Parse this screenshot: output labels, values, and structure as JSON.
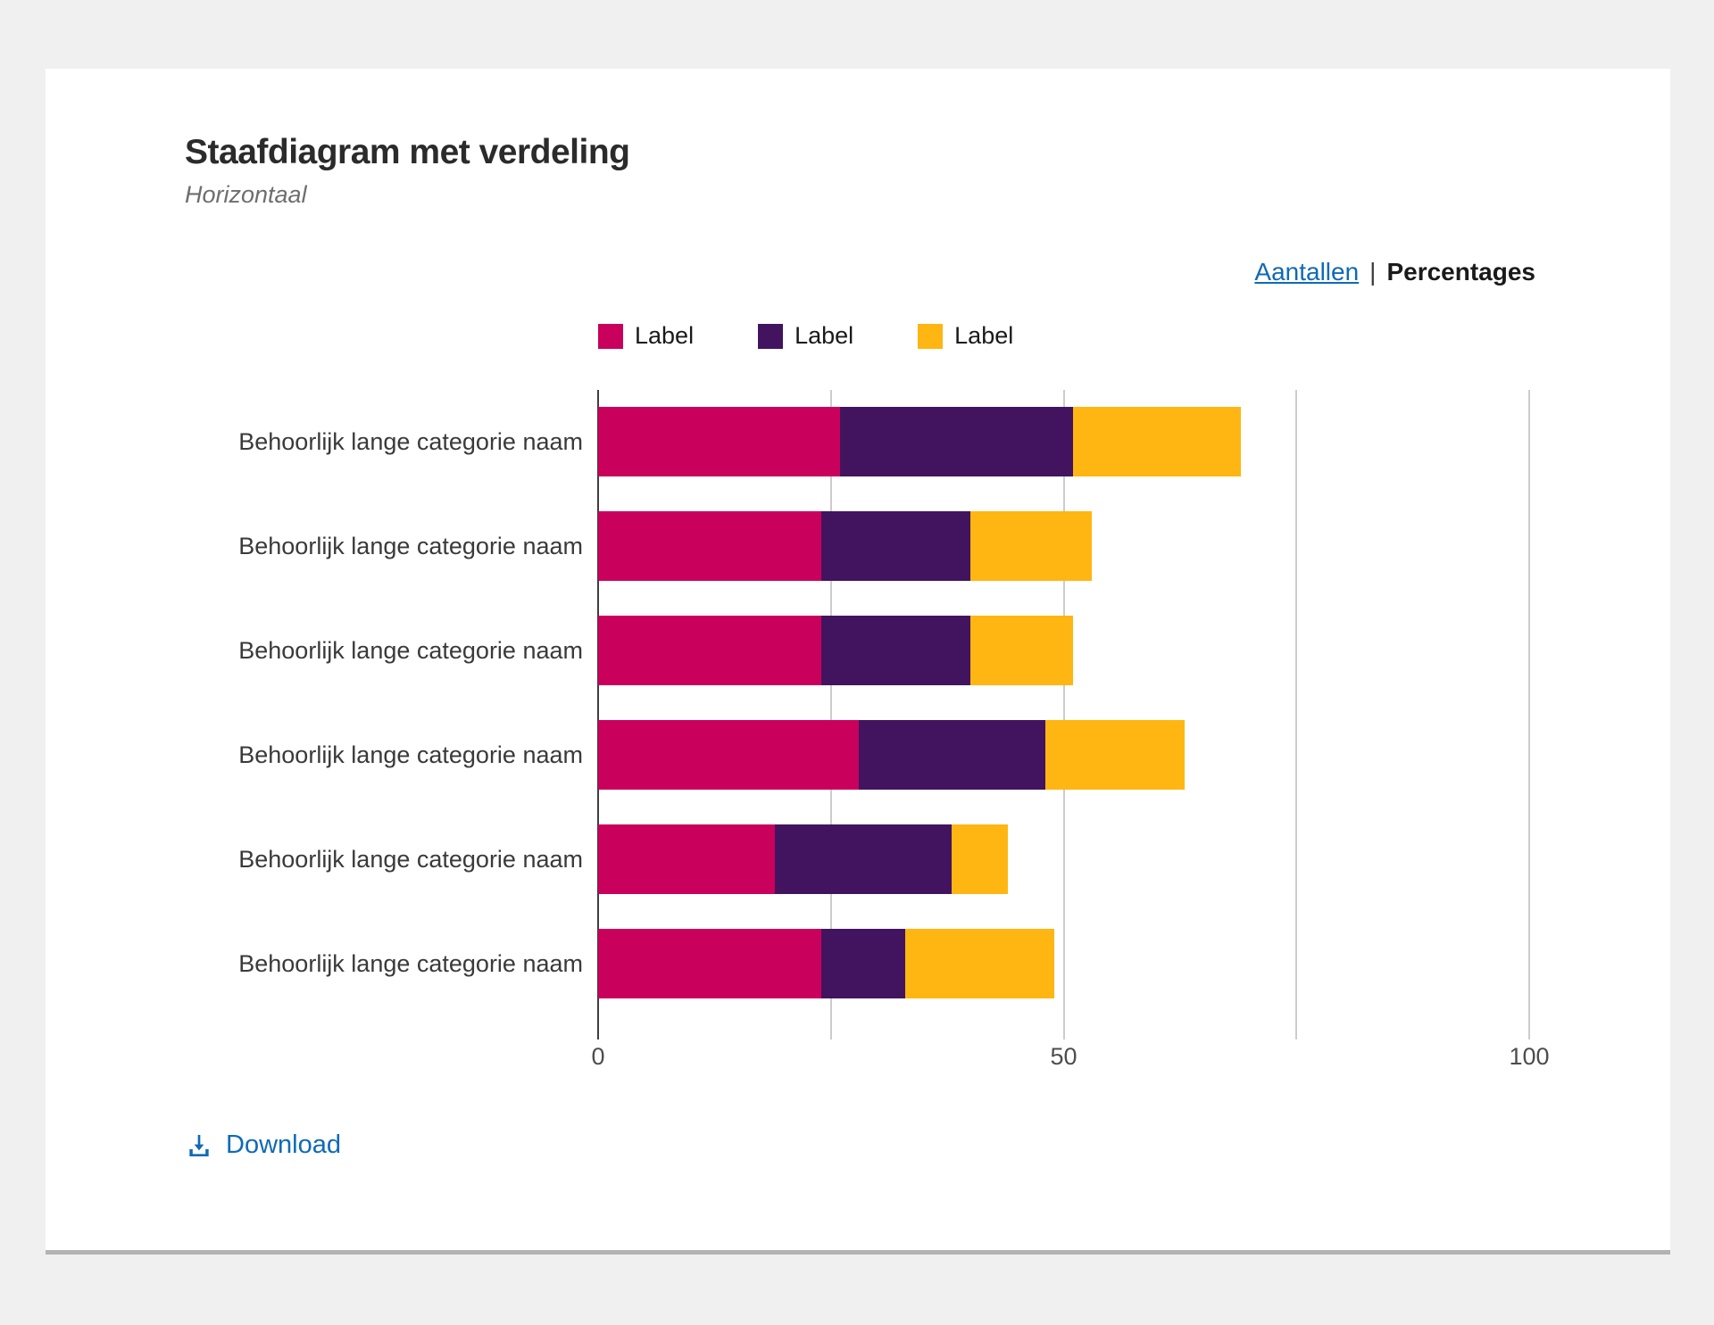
{
  "header": {
    "title": "Staafdiagram met verdeling",
    "subtitle": "Horizontaal"
  },
  "view_toggle": {
    "separator": "|",
    "options": [
      {
        "label": "Aantallen",
        "active": false
      },
      {
        "label": "Percentages",
        "active": true
      }
    ]
  },
  "legend": {
    "items": [
      {
        "label": "Label",
        "color": "#CA005D"
      },
      {
        "label": "Label",
        "color": "#42145F"
      },
      {
        "label": "Label",
        "color": "#FFB612"
      }
    ]
  },
  "chart_data": {
    "type": "bar",
    "orientation": "horizontal",
    "stacked": true,
    "title": "Staafdiagram met verdeling",
    "subtitle": "Horizontaal",
    "unit": "percent",
    "categories": [
      "Behoorlijk lange categorie naam",
      "Behoorlijk lange categorie naam",
      "Behoorlijk lange categorie naam",
      "Behoorlijk lange categorie naam",
      "Behoorlijk lange categorie naam",
      "Behoorlijk lange categorie naam"
    ],
    "series": [
      {
        "name": "Label",
        "color": "#CA005D",
        "values": [
          26,
          24,
          24,
          28,
          19,
          24
        ]
      },
      {
        "name": "Label",
        "color": "#42145F",
        "values": [
          25,
          16,
          16,
          20,
          19,
          9
        ]
      },
      {
        "name": "Label",
        "color": "#FFB612",
        "values": [
          18,
          13,
          11,
          15,
          6,
          16
        ]
      }
    ],
    "xlim": [
      0,
      100
    ],
    "xticks": [
      0,
      50,
      100
    ],
    "gridlines": [
      0,
      25,
      50,
      75,
      100
    ],
    "legend_position": "top",
    "grid": true
  },
  "download": {
    "label": "Download",
    "icon": "download-icon",
    "color": "#0f6ab6"
  },
  "colors": {
    "page_background": "#f0f0f0",
    "card_background": "#ffffff",
    "card_bottom_border": "#b3b3b3",
    "axis_line": "#3f3f3f",
    "gridline": "#cccccc",
    "link": "#0f6ab6"
  }
}
